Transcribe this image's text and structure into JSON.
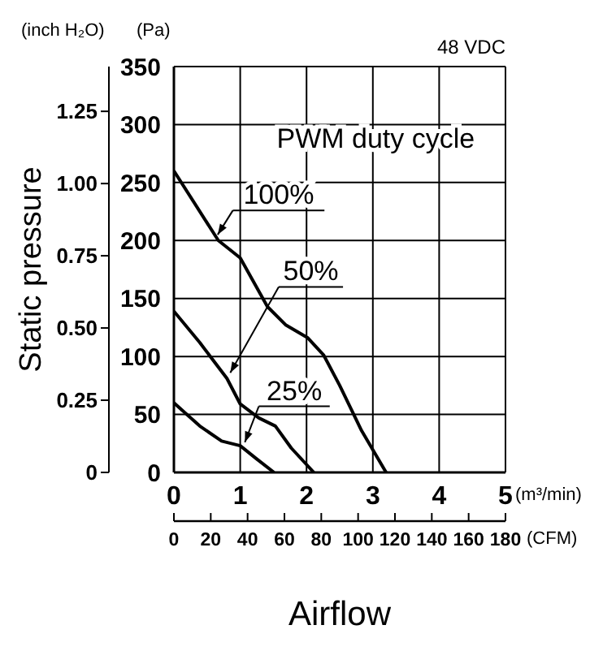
{
  "chart_data": {
    "type": "line",
    "xlabel": "Airflow",
    "ylabel": "Static pressure",
    "y2label": "(Pa)",
    "annotations": [
      "48 VDC",
      "PWM duty cycle",
      "(inch H₂O)",
      "(m³/min)",
      "(CFM)"
    ],
    "series": [
      {
        "name": "100%",
        "color": "#000000",
        "axis": "y2",
        "x": [
          0,
          0.67,
          1.0,
          1.41,
          1.69,
          2.02,
          2.26,
          2.5,
          2.83,
          3.2
        ],
        "values": [
          260,
          200,
          185,
          143,
          127,
          116,
          101,
          75,
          36,
          0
        ]
      },
      {
        "name": "50%",
        "color": "#000000",
        "axis": "y2",
        "x": [
          0,
          0.39,
          0.8,
          1.0,
          1.28,
          1.53,
          1.77,
          2.11
        ],
        "values": [
          139,
          112,
          81,
          59,
          47,
          40,
          21,
          0
        ]
      },
      {
        "name": "25%",
        "color": "#000000",
        "axis": "y2",
        "x": [
          0,
          0.39,
          0.72,
          1.0,
          1.24,
          1.51
        ],
        "values": [
          60,
          40,
          27,
          23,
          12,
          0
        ]
      }
    ],
    "xlim": [
      0,
      5
    ],
    "xticks": [
      0,
      1,
      2,
      3,
      4,
      5
    ],
    "ylim": [
      0,
      1.405
    ],
    "yticks": [
      0,
      {
        "value": 0.25,
        "label": "0.25"
      },
      {
        "value": 0.5,
        "label": "0.50"
      },
      {
        "value": 0.75,
        "label": "0.75"
      },
      {
        "value": 1,
        "label": "1.00"
      },
      1.25
    ],
    "y2lim": [
      0,
      350
    ],
    "y2ticks": [
      0,
      50,
      100,
      150,
      200,
      250,
      300,
      350
    ],
    "x2lim": [
      0,
      180
    ],
    "x2ticks": [
      0,
      20,
      40,
      60,
      80,
      100,
      120,
      140,
      160,
      180
    ],
    "grid": true,
    "legend": false,
    "marker": "none",
    "line_style": "solid"
  }
}
